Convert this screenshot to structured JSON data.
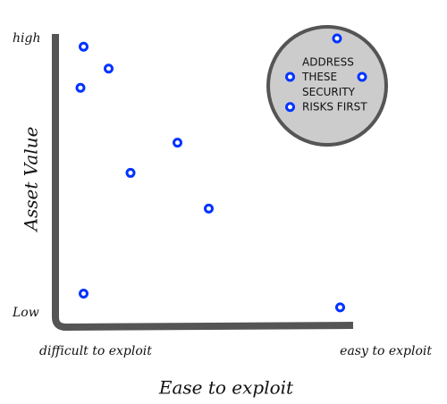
{
  "chart_data": {
    "type": "scatter",
    "x_label": "Ease to exploit",
    "y_label": "Asset Value",
    "xlim": [
      0,
      10
    ],
    "ylim": [
      0,
      10
    ],
    "xticks": [
      {
        "value": 0,
        "label": "difficult to exploit"
      },
      {
        "value": 10,
        "label": "easy to exploit"
      }
    ],
    "yticks": [
      {
        "value": 0,
        "label": "Low"
      },
      {
        "value": 10,
        "label": "high"
      }
    ],
    "color": "#0033ff",
    "x": [
      0.9,
      1.7,
      0.8,
      3.9,
      2.4,
      4.9,
      0.9,
      9.1,
      9.0,
      7.5,
      9.8,
      7.5
    ],
    "values": [
      9.7,
      8.9,
      8.2,
      6.2,
      5.1,
      3.8,
      0.7,
      0.2,
      10.0,
      8.6,
      8.6,
      7.5
    ],
    "annotation": [
      "ADDRESS",
      "THESE",
      "SECURITY",
      "RISKS FIRST"
    ]
  }
}
